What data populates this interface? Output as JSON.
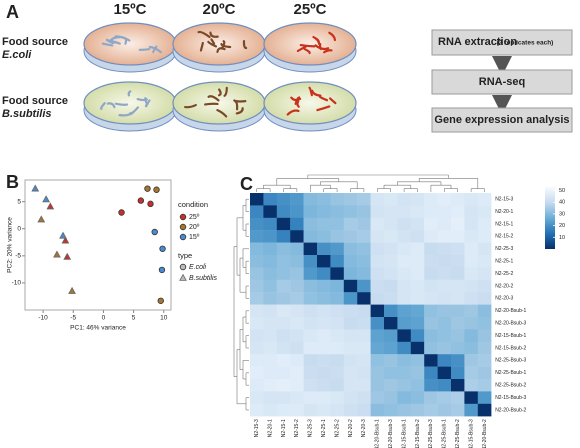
{
  "panel_labels": [
    "A",
    "B",
    "C"
  ],
  "diagram": {
    "temperatures": [
      "15ºC",
      "20ºC",
      "25ºC"
    ],
    "temperature_colors": [
      "#2b35c8",
      "#8a5a2b",
      "#d4241e"
    ],
    "food_sources": [
      {
        "label": "Food source",
        "organism": "E.coli"
      },
      {
        "label": "Food source",
        "organism": "B.subtilis"
      }
    ],
    "workflow": [
      {
        "text": "RNA extraction",
        "note": "(3 replicates each)"
      },
      {
        "text": "RNA-seq"
      },
      {
        "text": "Gene expression analysis"
      }
    ]
  },
  "chart_data": [
    {
      "type": "scatter",
      "xlabel": "PC1: 46% variance",
      "ylabel": "PC2: 20% variance",
      "xlim": [
        -13,
        11.2
      ],
      "ylim": [
        -15,
        9
      ],
      "xticks": [
        -10,
        -5,
        0,
        5,
        10
      ],
      "yticks": [
        -10,
        -5,
        0,
        5
      ],
      "legend_title": "condition",
      "series": [
        {
          "name": "25º",
          "color": "#c9302c",
          "x": [
            3.0,
            6.2,
            7.8,
            -8.8,
            -6.3,
            -6.0
          ],
          "y": [
            3.0,
            5.2,
            4.6,
            4.1,
            -2.2,
            -5.2
          ],
          "marker": [
            "circle",
            "circle",
            "circle",
            "triangle",
            "triangle",
            "triangle"
          ]
        },
        {
          "name": "20º",
          "color": "#a8742e",
          "x": [
            7.3,
            8.8,
            9.5,
            -10.3,
            -7.7,
            -5.2
          ],
          "y": [
            7.4,
            7.2,
            -13.3,
            1.7,
            -4.8,
            -11.5
          ],
          "marker": [
            "circle",
            "circle",
            "circle",
            "triangle",
            "triangle",
            "triangle"
          ]
        },
        {
          "name": "15º",
          "color": "#4a8ad4",
          "x": [
            8.5,
            9.8,
            9.7,
            -11.3,
            -9.5,
            -6.7
          ],
          "y": [
            -0.6,
            -3.7,
            -7.6,
            7.4,
            5.4,
            -1.3
          ],
          "marker": [
            "circle",
            "circle",
            "circle",
            "triangle",
            "triangle",
            "triangle"
          ]
        }
      ],
      "marker_legend_title": "type",
      "markers": [
        {
          "name": "E.coli",
          "marker": "circle"
        },
        {
          "name": "B.subtilis",
          "marker": "triangle"
        }
      ]
    },
    {
      "type": "heatmap",
      "rows": [
        "N2-15-3",
        "N2-20-1",
        "N2-15-1",
        "N2-15-2",
        "N2-25-3",
        "N2-25-1",
        "N2-25-2",
        "N2-20-2",
        "N2-20-3",
        "N2-20-Bsub-1",
        "N2-20-Bsub-3",
        "N2-15-Bsub-1",
        "N2-15-Bsub-2",
        "N2-25-Bsub-3",
        "N2-25-Bsub-1",
        "N2-25-Bsub-2",
        "N2-15-Bsub-3",
        "N2-20-Bsub-2"
      ],
      "columns": [
        "N2-15-3",
        "N2-20-1",
        "N2-15-1",
        "N2-15-2",
        "N2-25-3",
        "N2-25-1",
        "N2-25-2",
        "N2-20-2",
        "N2-20-3",
        "N2-20-Bsub-1",
        "N2-20-Bsub-3",
        "N2-15-Bsub-1",
        "N2-15-Bsub-2",
        "N2-25-Bsub-3",
        "N2-25-Bsub-1",
        "N2-25-Bsub-2",
        "N2-15-Bsub-3",
        "N2-20-Bsub-2"
      ],
      "values": [
        [
          0,
          18,
          20,
          22,
          30,
          31,
          33,
          34,
          35,
          44,
          45,
          43,
          44,
          46,
          47,
          46,
          45,
          46
        ],
        [
          18,
          0,
          19,
          21,
          29,
          30,
          31,
          32,
          33,
          43,
          44,
          44,
          45,
          46,
          46,
          47,
          44,
          45
        ],
        [
          20,
          19,
          0,
          17,
          31,
          32,
          32,
          35,
          34,
          45,
          44,
          42,
          43,
          47,
          46,
          48,
          44,
          46
        ],
        [
          22,
          21,
          17,
          0,
          30,
          31,
          33,
          34,
          35,
          44,
          45,
          43,
          42,
          46,
          47,
          47,
          45,
          46
        ],
        [
          30,
          29,
          31,
          30,
          0,
          20,
          22,
          31,
          32,
          42,
          43,
          45,
          46,
          40,
          41,
          42,
          46,
          44
        ],
        [
          31,
          30,
          32,
          31,
          20,
          0,
          19,
          30,
          31,
          43,
          44,
          46,
          46,
          41,
          40,
          41,
          46,
          45
        ],
        [
          33,
          31,
          32,
          33,
          22,
          19,
          0,
          29,
          30,
          42,
          43,
          45,
          46,
          40,
          41,
          40,
          45,
          44
        ],
        [
          34,
          32,
          35,
          34,
          31,
          30,
          29,
          0,
          21,
          41,
          40,
          44,
          45,
          43,
          44,
          44,
          43,
          42
        ],
        [
          35,
          33,
          34,
          35,
          32,
          31,
          30,
          21,
          0,
          40,
          41,
          44,
          45,
          44,
          43,
          44,
          42,
          41
        ],
        [
          44,
          43,
          45,
          44,
          42,
          43,
          42,
          41,
          40,
          0,
          20,
          24,
          25,
          32,
          33,
          33,
          34,
          31
        ],
        [
          45,
          44,
          44,
          45,
          43,
          44,
          43,
          40,
          41,
          20,
          0,
          23,
          24,
          33,
          32,
          34,
          33,
          32
        ],
        [
          43,
          44,
          42,
          43,
          45,
          46,
          45,
          44,
          44,
          24,
          23,
          0,
          19,
          31,
          32,
          33,
          30,
          33
        ],
        [
          44,
          45,
          43,
          42,
          46,
          46,
          46,
          45,
          45,
          25,
          24,
          19,
          0,
          32,
          33,
          32,
          31,
          34
        ],
        [
          46,
          46,
          47,
          46,
          40,
          41,
          40,
          43,
          44,
          32,
          33,
          31,
          32,
          0,
          18,
          20,
          34,
          35
        ],
        [
          47,
          46,
          46,
          47,
          41,
          40,
          41,
          44,
          43,
          33,
          32,
          32,
          33,
          18,
          0,
          19,
          35,
          34
        ],
        [
          46,
          47,
          48,
          47,
          42,
          41,
          40,
          44,
          44,
          33,
          34,
          33,
          32,
          20,
          19,
          0,
          36,
          35
        ],
        [
          45,
          44,
          44,
          45,
          46,
          46,
          45,
          43,
          42,
          34,
          33,
          30,
          31,
          34,
          35,
          36,
          0,
          22
        ],
        [
          46,
          45,
          46,
          46,
          44,
          45,
          44,
          42,
          41,
          31,
          32,
          33,
          34,
          35,
          34,
          35,
          22,
          0
        ]
      ],
      "zlim": [
        0,
        53
      ],
      "zticks": [
        50,
        40,
        30,
        20,
        10
      ],
      "colors": [
        "#08306b",
        "#2171b5",
        "#6baed6",
        "#c6dbef",
        "#f7fbff"
      ]
    }
  ]
}
